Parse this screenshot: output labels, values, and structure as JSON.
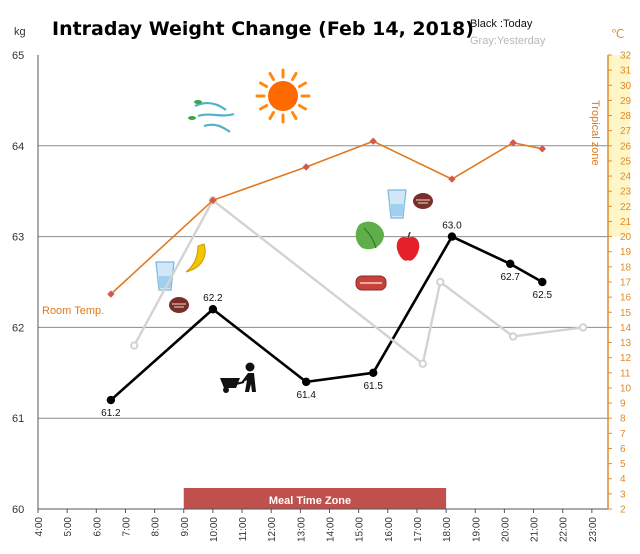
{
  "chart_data": {
    "type": "line",
    "title": "Intraday Weight Change (Feb 14, 2018)",
    "legend": {
      "today": "Black :Today",
      "yesterday": "Gray:Yesterday",
      "placement": "top-right"
    },
    "ylabel": "kg",
    "ylim": [
      60,
      65
    ],
    "yticks": [
      "60",
      "61",
      "62",
      "63",
      "64",
      "65"
    ],
    "y2label": "℃",
    "y2lim": [
      2,
      32
    ],
    "y2ticks": [
      "2",
      "3",
      "4",
      "5",
      "6",
      "7",
      "8",
      "9",
      "10",
      "11",
      "12",
      "13",
      "14",
      "15",
      "16",
      "17",
      "18",
      "19",
      "20",
      "21",
      "22",
      "23",
      "24",
      "25",
      "26",
      "27",
      "28",
      "29",
      "30",
      "31",
      "32"
    ],
    "x_categories": [
      "4:00",
      "5:00",
      "6:00",
      "7:00",
      "8:00",
      "9:00",
      "10:00",
      "11:00",
      "12:00",
      "13:00",
      "14:00",
      "15:00",
      "16:00",
      "17:00",
      "18:00",
      "19:00",
      "20:00",
      "21:00",
      "22:00",
      "23:00"
    ],
    "grid": true,
    "series": [
      {
        "name": "Today",
        "color": "#000000",
        "points": [
          {
            "x": 6.5,
            "y": 61.2,
            "label": "61.2"
          },
          {
            "x": 10.0,
            "y": 62.2,
            "label": "62.2"
          },
          {
            "x": 13.2,
            "y": 61.4,
            "label": "61.4"
          },
          {
            "x": 15.5,
            "y": 61.5,
            "label": "61.5"
          },
          {
            "x": 18.2,
            "y": 63.0,
            "label": "63.0"
          },
          {
            "x": 20.2,
            "y": 62.7,
            "label": "62.7"
          },
          {
            "x": 21.3,
            "y": 62.5,
            "label": "62.5"
          }
        ]
      },
      {
        "name": "Yesterday",
        "color": "#d3d3d3",
        "points": [
          {
            "x": 7.3,
            "y": 61.8
          },
          {
            "x": 10.0,
            "y": 63.4
          },
          {
            "x": 17.2,
            "y": 61.6
          },
          {
            "x": 17.8,
            "y": 62.5
          },
          {
            "x": 20.3,
            "y": 61.9
          },
          {
            "x": 22.7,
            "y": 62.0
          }
        ]
      },
      {
        "name": "Temperature",
        "axis": "right",
        "color": "#e07a20",
        "points": [
          {
            "x": 6.5,
            "y": 16.2
          },
          {
            "x": 10.0,
            "y": 22.4
          },
          {
            "x": 13.2,
            "y": 24.6
          },
          {
            "x": 15.5,
            "y": 26.3
          },
          {
            "x": 18.2,
            "y": 23.8
          },
          {
            "x": 20.3,
            "y": 26.2
          },
          {
            "x": 21.3,
            "y": 25.8
          }
        ]
      }
    ],
    "weight_labels_today": [
      "61.2",
      "62.2",
      "61.4",
      "61.5",
      "63.0",
      "62.7",
      "62.5"
    ],
    "annotations": {
      "room_temp": "Room Temp.",
      "tropical_zone": "Tropical zone",
      "tropical_zone_y2": [
        20,
        32
      ],
      "meal_time_zone": "Meal Time Zone",
      "meal_time_range": [
        9.0,
        18.0
      ]
    },
    "icons": [
      "wind-icon",
      "sun-icon",
      "banana-icon",
      "water-glass-icon",
      "nuts-icon",
      "wheelbarrow-worker-icon",
      "lettuce-icon",
      "apple-icon",
      "steak-icon"
    ],
    "colors": {
      "today": "#000000",
      "yesterday": "#d3d3d3",
      "temperature": "#e07a20",
      "tropical_zone_fill": "#fff6c8",
      "meal_zone_fill": "#c0504d",
      "right_axis": "#e08a2a"
    }
  }
}
